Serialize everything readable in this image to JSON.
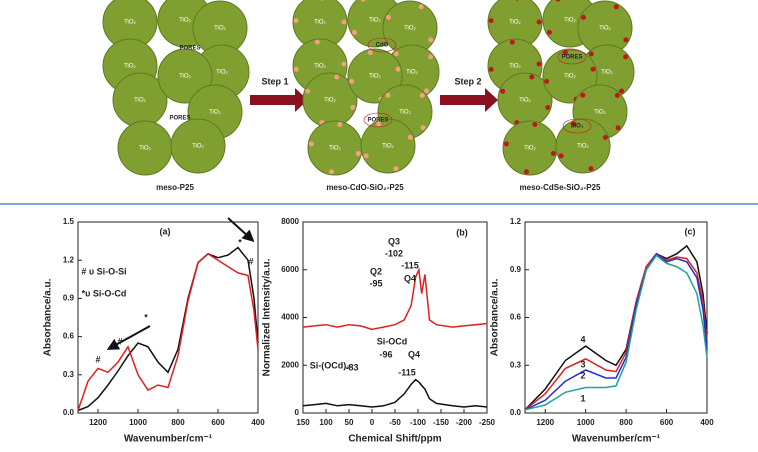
{
  "diagram": {
    "panels": [
      {
        "caption": "meso-P25",
        "tio2_labels": [
          "TiO₂",
          "TiO₂",
          "TiO₂",
          "TiO₂",
          "TiO₂",
          "TiO₂",
          "TiO₂",
          "TiO₂",
          "TiO₂",
          "TiO₂"
        ],
        "inner_labels": [
          "PORES",
          "PORES"
        ]
      },
      {
        "caption": "meso-CdO-SiO₂-P25",
        "tio2_labels": [
          "TiO₂",
          "TiO₂",
          "TiO₂",
          "TiO₂",
          "TiO₂",
          "TiO₂",
          "TiO₂",
          "TiO₂",
          "TiO₂",
          "TiO₂"
        ],
        "inner_labels": [
          "CdO",
          "PORES"
        ]
      },
      {
        "caption": "meso-CdSe-SiO₂-P25",
        "tio2_labels": [
          "TiO₂",
          "TiO₂",
          "TiO₂",
          "TiO₂",
          "TiO₂",
          "TiO₂",
          "TiO₂",
          "TiO₂",
          "TiO₂",
          "TiO₂"
        ],
        "inner_labels": [
          "PORES",
          "SiO₂"
        ]
      }
    ],
    "steps": [
      "Step 1",
      "Step 2"
    ]
  },
  "chart_data": [
    {
      "type": "line",
      "ylabel": "Absorbance/a.u.",
      "xlabel": "Wavenumber/cm⁻¹",
      "x": [
        1300,
        1250,
        1200,
        1150,
        1100,
        1050,
        1000,
        950,
        900,
        850,
        800,
        750,
        700,
        650,
        600,
        550,
        500,
        450,
        420,
        400
      ],
      "series": [
        {
          "color": "#111111",
          "values": [
            0.02,
            0.05,
            0.12,
            0.22,
            0.33,
            0.45,
            0.55,
            0.52,
            0.4,
            0.32,
            0.5,
            0.9,
            1.18,
            1.25,
            1.22,
            1.24,
            1.3,
            1.2,
            0.9,
            0.55
          ]
        },
        {
          "color": "#e02020",
          "values": [
            0.02,
            0.25,
            0.35,
            0.32,
            0.4,
            0.52,
            0.3,
            0.18,
            0.22,
            0.2,
            0.45,
            0.88,
            1.18,
            1.25,
            1.2,
            1.15,
            1.1,
            1.08,
            0.8,
            0.5
          ]
        }
      ],
      "xlim": [
        1300,
        400
      ],
      "ylim": [
        0,
        1.5
      ],
      "xticks": [
        1200,
        1000,
        800,
        600,
        400
      ],
      "yticks": [
        {
          "value": 0,
          "label": "0.0"
        },
        0.3,
        0.6,
        0.9,
        1.2,
        1.5
      ],
      "annotations": [
        "(a)",
        "#",
        "#",
        "*",
        "*",
        "#",
        "# υ Si-O-Si",
        "*υ Si-O-Cd"
      ]
    },
    {
      "type": "line",
      "ylabel": "Normalized Intensity/a.u.",
      "xlabel": "Chemical Shift/ppm",
      "x": [
        150,
        125,
        100,
        75,
        50,
        25,
        0,
        -25,
        -50,
        -70,
        -85,
        -95,
        -102,
        -108,
        -115,
        -125,
        -140,
        -175,
        -200,
        -225,
        -250
      ],
      "series": [
        {
          "color": "#e02020",
          "values": [
            3600,
            3650,
            3700,
            3600,
            3700,
            3650,
            3500,
            3600,
            3700,
            3900,
            4500,
            5700,
            6000,
            5000,
            5800,
            3900,
            3700,
            3600,
            3650,
            3700,
            3750
          ]
        },
        {
          "color": "#111111",
          "values": [
            300,
            350,
            400,
            300,
            350,
            300,
            250,
            300,
            450,
            800,
            1200,
            1400,
            1300,
            1150,
            1000,
            600,
            400,
            300,
            250,
            300,
            250
          ]
        }
      ],
      "xlim": [
        150,
        -250
      ],
      "ylim": [
        0,
        8000
      ],
      "xticks": [
        150,
        100,
        50,
        0,
        -50,
        -100,
        -150,
        -200,
        -250
      ],
      "yticks": [
        0,
        2000,
        4000,
        6000,
        8000
      ],
      "annotations": [
        "(b)",
        "Q3",
        "-102",
        "-115",
        "Q4",
        "Q2",
        "-95",
        "Si-OCd",
        "-96",
        "Q4",
        "Si-(OCd)₂",
        "-83",
        "-115"
      ]
    },
    {
      "type": "line",
      "ylabel": "Absorbance/a.u.",
      "xlabel": "Wavenumber/cm⁻¹",
      "x": [
        1300,
        1200,
        1100,
        1000,
        900,
        850,
        800,
        750,
        700,
        650,
        600,
        550,
        500,
        450,
        420,
        400
      ],
      "series": [
        {
          "color": "#111111",
          "values": [
            0.02,
            0.15,
            0.33,
            0.42,
            0.33,
            0.3,
            0.4,
            0.7,
            0.92,
            1.0,
            0.97,
            1.0,
            1.05,
            0.95,
            0.75,
            0.5
          ]
        },
        {
          "color": "#e02020",
          "values": [
            0.02,
            0.12,
            0.28,
            0.34,
            0.27,
            0.26,
            0.38,
            0.7,
            0.92,
            1.0,
            0.96,
            0.98,
            0.97,
            0.88,
            0.7,
            0.45
          ]
        },
        {
          "color": "#2030d0",
          "values": [
            0.02,
            0.08,
            0.2,
            0.27,
            0.22,
            0.22,
            0.35,
            0.68,
            0.9,
            1.0,
            0.95,
            0.97,
            0.95,
            0.85,
            0.65,
            0.4
          ]
        },
        {
          "color": "#20a0a0",
          "values": [
            0.02,
            0.05,
            0.13,
            0.16,
            0.16,
            0.17,
            0.32,
            0.65,
            0.9,
            0.99,
            0.94,
            0.92,
            0.88,
            0.75,
            0.55,
            0.35
          ]
        }
      ],
      "xlim": [
        1300,
        400
      ],
      "ylim": [
        0,
        1.2
      ],
      "xticks": [
        1200,
        1000,
        800,
        600,
        400
      ],
      "yticks": [
        {
          "value": 0,
          "label": "0.0"
        },
        0.3,
        0.6,
        0.9,
        1.2
      ],
      "annotations": [
        "(c)",
        "4",
        "3",
        "2",
        "1"
      ]
    }
  ]
}
